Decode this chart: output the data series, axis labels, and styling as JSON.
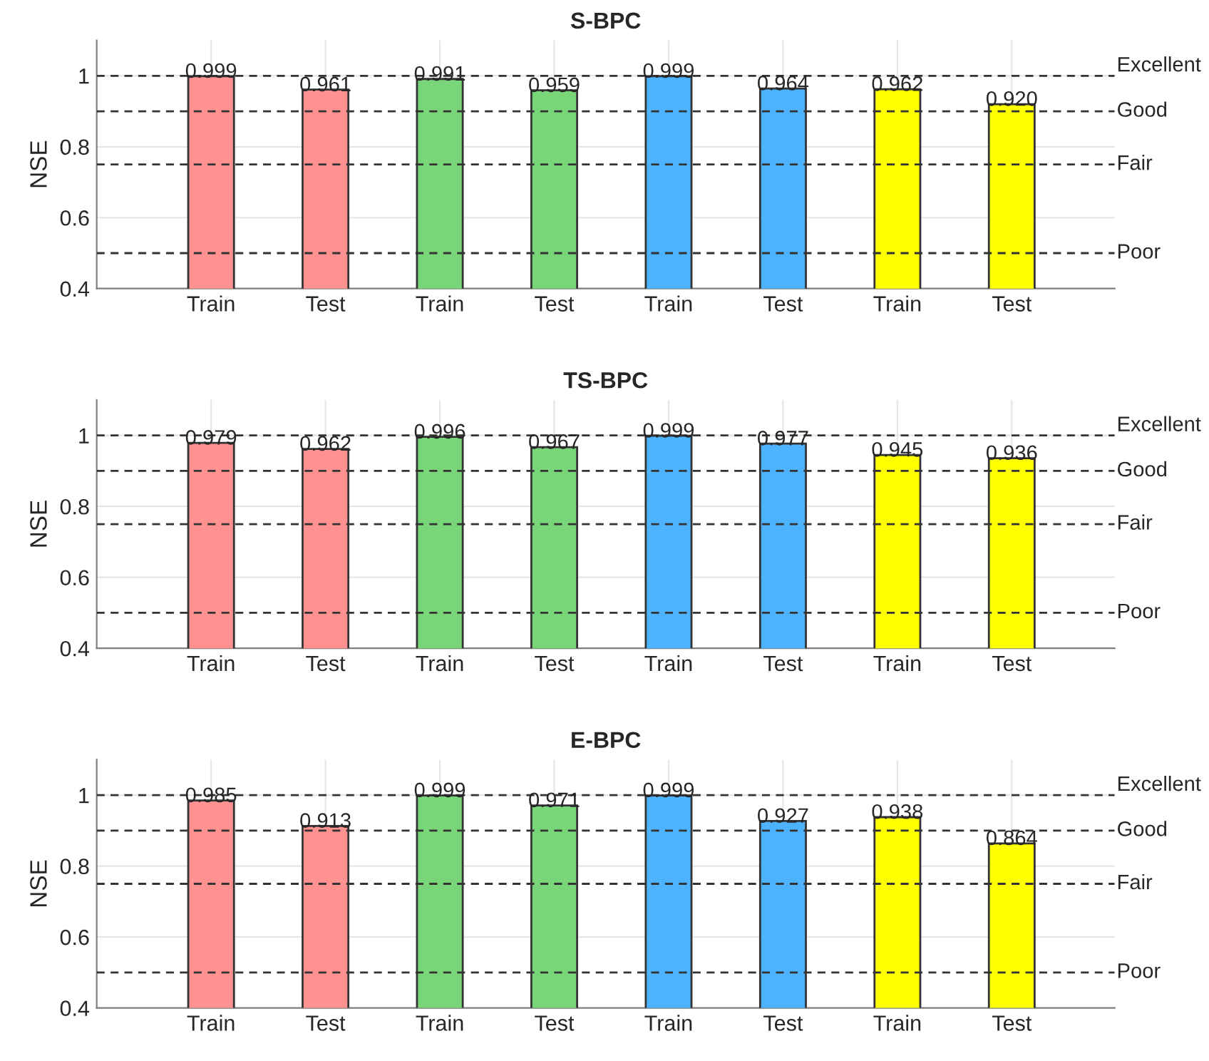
{
  "chart_data": [
    {
      "type": "bar",
      "title": "S-BPC",
      "ylabel": "NSE",
      "categories": [
        "Train",
        "Test",
        "Train",
        "Test",
        "Train",
        "Test",
        "Train",
        "Test"
      ],
      "values": [
        0.999,
        0.961,
        0.991,
        0.959,
        0.999,
        0.964,
        0.962,
        0.92
      ],
      "value_labels": [
        "0.999",
        "0.961",
        "0.991",
        "0.959",
        "0.999",
        "0.964",
        "0.962",
        "0.920"
      ],
      "colors": [
        "#ff9191",
        "#ff9191",
        "#78d678",
        "#78d678",
        "#4db3ff",
        "#4db3ff",
        "#ffff00",
        "#ffff00"
      ],
      "ylim": [
        0.4,
        1.1
      ],
      "yticks": [
        0.4,
        0.6,
        0.8,
        1
      ],
      "grid": true,
      "ref_lines": [
        {
          "axis": "y",
          "value": 1,
          "label": "Excellent",
          "line_style": "dashed"
        },
        {
          "axis": "y",
          "value": 0.9,
          "label": "Good",
          "line_style": "dashed"
        },
        {
          "axis": "y",
          "value": 0.75,
          "label": "Fair",
          "line_style": "dashed"
        },
        {
          "axis": "y",
          "value": 0.5,
          "label": "Poor",
          "line_style": "dashed"
        }
      ]
    },
    {
      "type": "bar",
      "title": "TS-BPC",
      "ylabel": "NSE",
      "categories": [
        "Train",
        "Test",
        "Train",
        "Test",
        "Train",
        "Test",
        "Train",
        "Test"
      ],
      "values": [
        0.979,
        0.962,
        0.996,
        0.967,
        0.999,
        0.977,
        0.945,
        0.936
      ],
      "value_labels": [
        "0.979",
        "0.962",
        "0.996",
        "0.967",
        "0.999",
        "0.977",
        "0.945",
        "0.936"
      ],
      "colors": [
        "#ff9191",
        "#ff9191",
        "#78d678",
        "#78d678",
        "#4db3ff",
        "#4db3ff",
        "#ffff00",
        "#ffff00"
      ],
      "ylim": [
        0.4,
        1.1
      ],
      "yticks": [
        0.4,
        0.6,
        0.8,
        1
      ],
      "grid": true,
      "ref_lines": [
        {
          "axis": "y",
          "value": 1,
          "label": "Excellent",
          "line_style": "dashed"
        },
        {
          "axis": "y",
          "value": 0.9,
          "label": "Good",
          "line_style": "dashed"
        },
        {
          "axis": "y",
          "value": 0.75,
          "label": "Fair",
          "line_style": "dashed"
        },
        {
          "axis": "y",
          "value": 0.5,
          "label": "Poor",
          "line_style": "dashed"
        }
      ]
    },
    {
      "type": "bar",
      "title": "E-BPC",
      "ylabel": "NSE",
      "categories": [
        "Train",
        "Test",
        "Train",
        "Test",
        "Train",
        "Test",
        "Train",
        "Test"
      ],
      "values": [
        0.985,
        0.913,
        0.999,
        0.971,
        0.999,
        0.927,
        0.938,
        0.864
      ],
      "value_labels": [
        "0.985",
        "0.913",
        "0.999",
        "0.971",
        "0.999",
        "0.927",
        "0.938",
        "0.864"
      ],
      "colors": [
        "#ff9191",
        "#ff9191",
        "#78d678",
        "#78d678",
        "#4db3ff",
        "#4db3ff",
        "#ffff00",
        "#ffff00"
      ],
      "ylim": [
        0.4,
        1.1
      ],
      "yticks": [
        0.4,
        0.6,
        0.8,
        1
      ],
      "grid": true,
      "ref_lines": [
        {
          "axis": "y",
          "value": 1,
          "label": "Excellent",
          "line_style": "dashed"
        },
        {
          "axis": "y",
          "value": 0.9,
          "label": "Good",
          "line_style": "dashed"
        },
        {
          "axis": "y",
          "value": 0.75,
          "label": "Fair",
          "line_style": "dashed"
        },
        {
          "axis": "y",
          "value": 0.5,
          "label": "Poor",
          "line_style": "dashed"
        }
      ]
    }
  ]
}
